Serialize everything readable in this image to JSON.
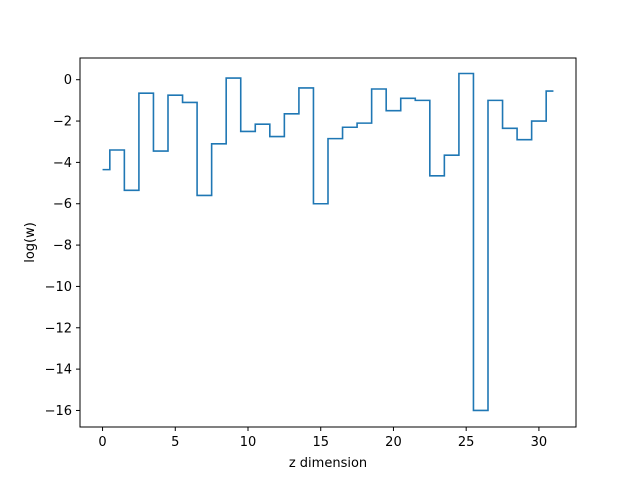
{
  "chart_data": {
    "type": "line",
    "drawstyle": "steps-mid",
    "title": "",
    "xlabel": "z dimension",
    "ylabel": "log(w)",
    "xlim": [
      -1.55,
      32.55
    ],
    "ylim": [
      -16.8,
      1.05
    ],
    "xticks": [
      0,
      5,
      10,
      15,
      20,
      25,
      30
    ],
    "xtick_labels": [
      "0",
      "5",
      "10",
      "15",
      "20",
      "25",
      "30"
    ],
    "yticks": [
      0,
      -2,
      -4,
      -6,
      -8,
      -10,
      -12,
      -14,
      -16
    ],
    "ytick_labels": [
      "0",
      "−2",
      "−4",
      "−6",
      "−8",
      "−10",
      "−12",
      "−14",
      "−16"
    ],
    "grid": false,
    "legend": "none",
    "line_color": "#1f77b4",
    "series": [
      {
        "x": [
          0,
          1,
          2,
          3,
          4,
          5,
          6,
          7,
          8,
          9,
          10,
          11,
          12,
          13,
          14,
          15,
          16,
          17,
          18,
          19,
          20,
          21,
          22,
          23,
          24,
          25,
          26,
          27,
          28,
          29,
          30,
          31
        ],
        "values": [
          -4.35,
          -3.4,
          -5.35,
          -0.65,
          -3.45,
          -0.75,
          -1.1,
          -5.6,
          -3.1,
          0.08,
          -2.5,
          -2.15,
          -2.75,
          -1.65,
          -0.4,
          -6.0,
          -2.85,
          -2.3,
          -2.1,
          -0.45,
          -1.5,
          -0.9,
          -1.0,
          -4.65,
          -3.65,
          0.3,
          -16.0,
          -1.0,
          -2.35,
          -2.9,
          -2.0,
          -0.55
        ]
      }
    ]
  }
}
